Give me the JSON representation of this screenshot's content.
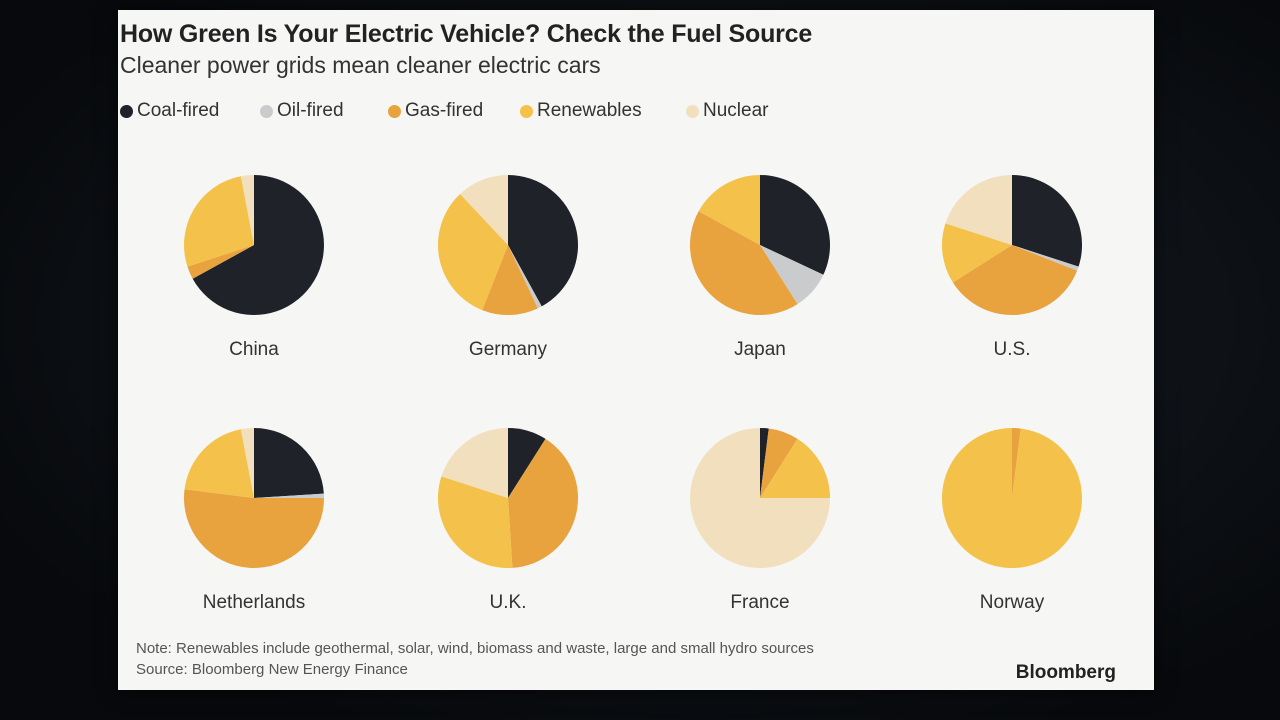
{
  "chart_data": {
    "type": "pie",
    "title": "How Green Is Your Electric Vehicle? Check the Fuel Source",
    "subtitle": "Cleaner power grids mean cleaner electric cars",
    "legend_position": "top-left",
    "legend": [
      {
        "name": "Coal-fired",
        "color": "#1f2329"
      },
      {
        "name": "Oil-fired",
        "color": "#c9cbcc"
      },
      {
        "name": "Gas-fired",
        "color": "#e8a23e"
      },
      {
        "name": "Renewables",
        "color": "#f4c24a"
      },
      {
        "name": "Nuclear",
        "color": "#f2dfbe"
      }
    ],
    "categories": [
      "Coal-fired",
      "Oil-fired",
      "Gas-fired",
      "Renewables",
      "Nuclear"
    ],
    "pies": [
      {
        "country": "China",
        "values": [
          67,
          0,
          3,
          27,
          3
        ]
      },
      {
        "country": "Germany",
        "values": [
          42,
          1,
          13,
          32,
          12
        ]
      },
      {
        "country": "Japan",
        "values": [
          32,
          9,
          42,
          17,
          0
        ]
      },
      {
        "country": "U.S.",
        "values": [
          30,
          1,
          35,
          14,
          20
        ]
      },
      {
        "country": "Netherlands",
        "values": [
          24,
          1,
          52,
          20,
          3
        ]
      },
      {
        "country": "U.K.",
        "values": [
          9,
          0,
          40,
          31,
          20
        ]
      },
      {
        "country": "France",
        "values": [
          2,
          0,
          7,
          16,
          75
        ]
      },
      {
        "country": "Norway",
        "values": [
          0,
          0,
          2,
          98,
          0
        ]
      }
    ],
    "note": "Note: Renewables include geothermal, solar, wind, biomass and waste, large and small hydro sources",
    "source": "Source: Bloomberg New Energy Finance"
  },
  "brand": "Bloomberg"
}
